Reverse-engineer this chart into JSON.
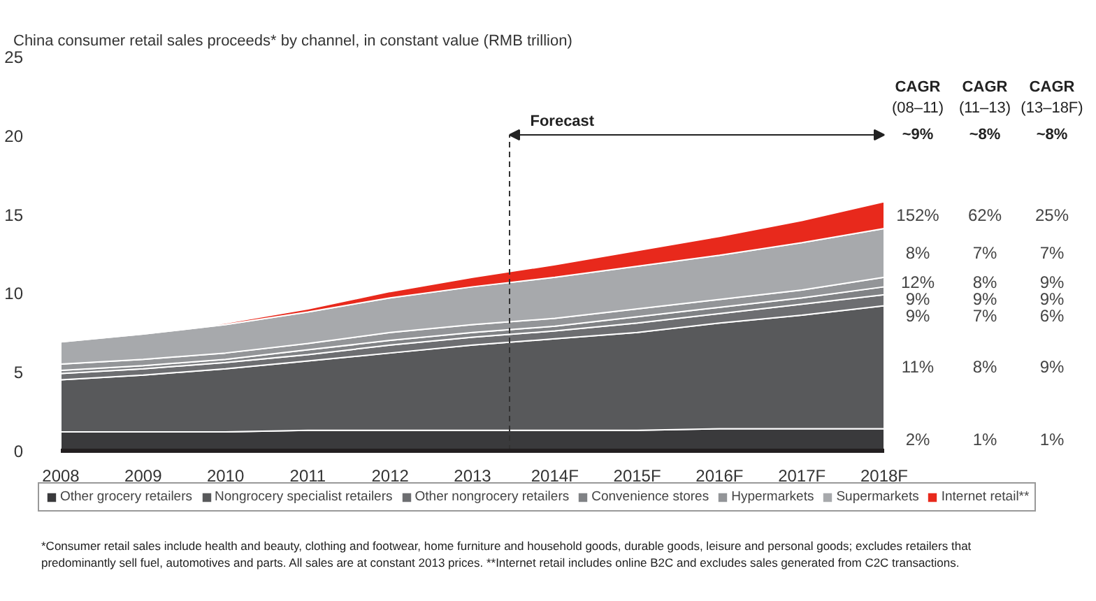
{
  "chart_data": {
    "type": "area",
    "stacked": true,
    "title": "China consumer retail sales proceeds* by channel, in constant value (RMB trillion)",
    "x": [
      2008,
      2009,
      2010,
      2011,
      2012,
      2013,
      2014,
      2015,
      2016,
      2017,
      2018
    ],
    "xlim": [
      2008,
      2018
    ],
    "xticks": [
      2008,
      2009,
      2010,
      2011,
      2012,
      2013,
      {
        "value": 2014,
        "label": "2014F"
      },
      {
        "value": 2015,
        "label": "2015F"
      },
      {
        "value": 2016,
        "label": "2016F"
      },
      {
        "value": 2017,
        "label": "2017F"
      },
      {
        "value": 2018,
        "label": "2018F"
      }
    ],
    "ylim": [
      0,
      25
    ],
    "yticks": [
      0,
      5,
      10,
      15,
      20,
      25
    ],
    "grid": false,
    "legend": "bottom",
    "series": [
      {
        "name": "Other grocery retailers",
        "color": "#3a3a3c",
        "values": [
          1.2,
          1.2,
          1.2,
          1.3,
          1.3,
          1.3,
          1.3,
          1.3,
          1.4,
          1.4,
          1.4
        ]
      },
      {
        "name": "Nongrocery specialist retailers",
        "color": "#58595b",
        "values": [
          3.3,
          3.6,
          4.0,
          4.4,
          4.9,
          5.4,
          5.8,
          6.2,
          6.7,
          7.2,
          7.8
        ]
      },
      {
        "name": "Other nongrocery retailers",
        "color": "#6d6e71",
        "values": [
          0.4,
          0.4,
          0.4,
          0.4,
          0.5,
          0.5,
          0.5,
          0.6,
          0.6,
          0.7,
          0.7
        ]
      },
      {
        "name": "Convenience stores",
        "color": "#808285",
        "values": [
          0.2,
          0.2,
          0.2,
          0.3,
          0.3,
          0.3,
          0.3,
          0.4,
          0.4,
          0.4,
          0.5
        ]
      },
      {
        "name": "Hypermarkets",
        "color": "#939598",
        "values": [
          0.4,
          0.4,
          0.4,
          0.4,
          0.5,
          0.5,
          0.5,
          0.5,
          0.5,
          0.5,
          0.6
        ]
      },
      {
        "name": "Supermarkets",
        "color": "#a7a9ac",
        "values": [
          1.4,
          1.6,
          1.8,
          2.0,
          2.2,
          2.4,
          2.6,
          2.7,
          2.8,
          3.0,
          3.1
        ]
      },
      {
        "name": "Internet retail**",
        "color": "#e8291c",
        "values": [
          0,
          0,
          0.1,
          0.2,
          0.4,
          0.6,
          0.8,
          1.0,
          1.2,
          1.4,
          1.7
        ]
      }
    ],
    "ref_lines": [
      {
        "axis": "x",
        "value": 2013.45,
        "label": "Forecast",
        "line_style": "dashed",
        "color": "#333333"
      }
    ],
    "annotations": [
      "CAGR\n(08–11)",
      "CAGR\n(11–13)",
      "CAGR\n(13–18F)",
      "~9%",
      "~8%",
      "~8%",
      "152%",
      "62%",
      "25%",
      "8%",
      "7%",
      "7%",
      "12%",
      "8%",
      "9%",
      "9%",
      "9%",
      "9%",
      "9%",
      "7%",
      "6%",
      "11%",
      "8%",
      "9%",
      "2%",
      "1%",
      "1%",
      "*Consumer retail sales include health and beauty, clothing and footwear, home furniture and household goods, durable goods, leisure and personal goods; excludes retailers that\npredominantly sell fuel, automotives and parts. All sales are at constant 2013 prices. **Internet retail includes online B2C and excludes sales generated from C2C transactions."
    ]
  }
}
